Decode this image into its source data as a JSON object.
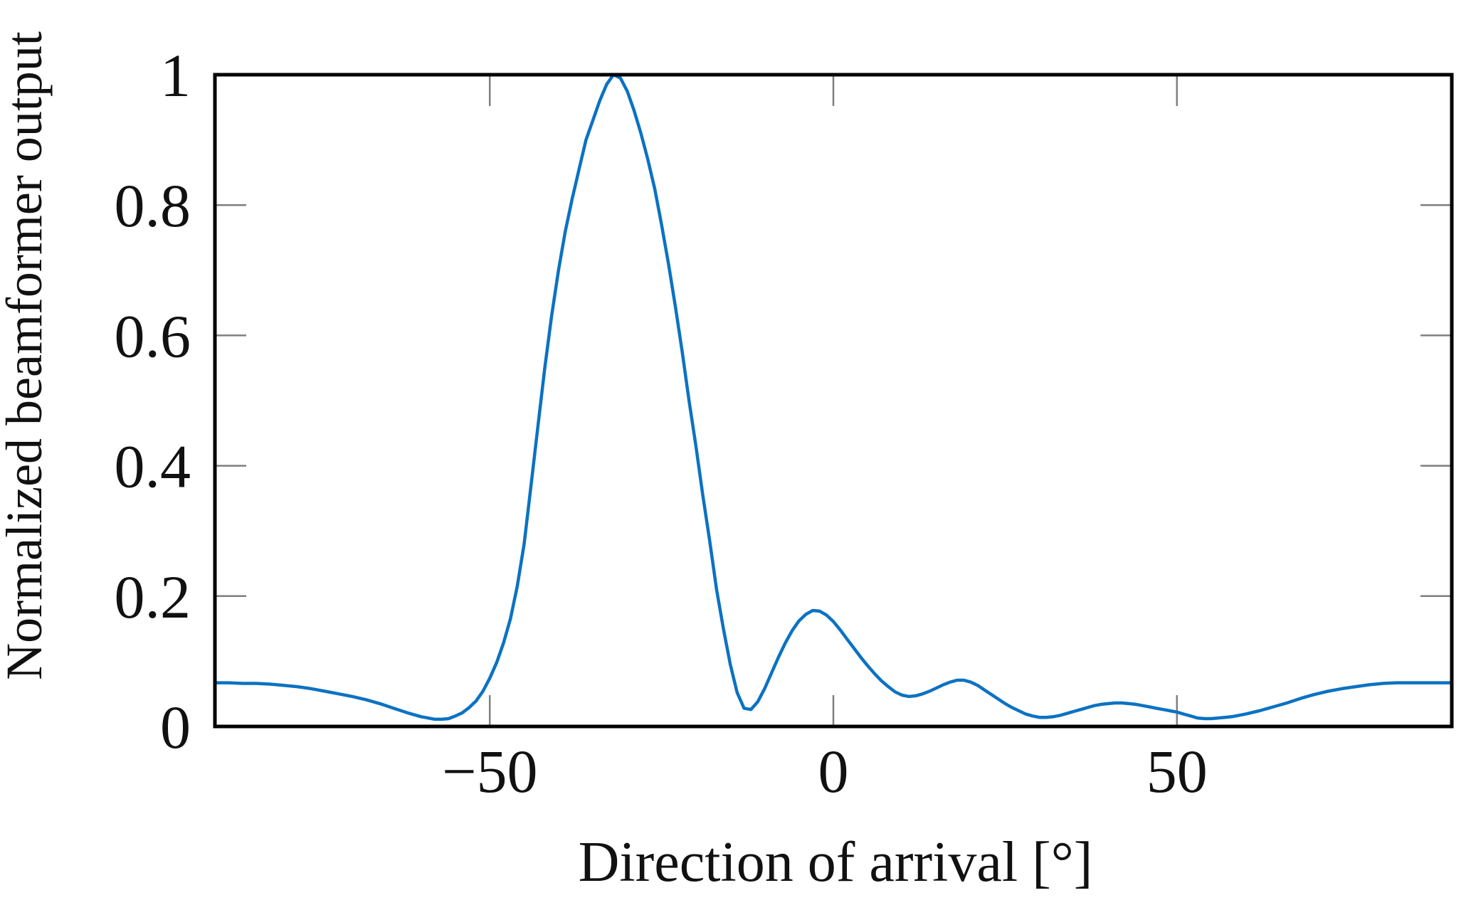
{
  "figure": {
    "background_color": "#ffffff",
    "axis_color": "#000000",
    "tick_color": "#7f7f7f"
  },
  "chart_data": {
    "type": "line",
    "title": "",
    "xlabel": "Direction of arrival [°]",
    "ylabel": "Normalized beamformer output",
    "xlim": [
      -90,
      90
    ],
    "ylim": [
      0,
      1
    ],
    "grid": false,
    "legend": "none",
    "x_ticks": {
      "values": [
        -50,
        0,
        50
      ],
      "labels": [
        "−50",
        "0",
        "50"
      ]
    },
    "y_ticks": {
      "values": [
        1,
        0.8,
        0.6,
        0.4,
        0.2,
        0
      ],
      "labels": [
        "1",
        "0.8",
        "0.6",
        "0.4",
        "0.2",
        "0"
      ]
    },
    "series": [
      {
        "name": "normalized beamformer output",
        "color": "#0b72c2",
        "line_width": 4.5,
        "x": [
          -90,
          -88,
          -86,
          -84,
          -82,
          -80,
          -78,
          -76,
          -74,
          -72,
          -70,
          -68,
          -66,
          -64,
          -62,
          -60,
          -59,
          -58,
          -57,
          -56,
          -55,
          -54,
          -53,
          -52,
          -51,
          -50,
          -49,
          -48,
          -47,
          -46,
          -45,
          -44,
          -43,
          -42,
          -41,
          -40,
          -39,
          -38,
          -37,
          -36,
          -35,
          -34,
          -33,
          -32,
          -31,
          -30,
          -29,
          -28,
          -27,
          -26,
          -25,
          -24,
          -23,
          -22,
          -21,
          -20,
          -19,
          -18,
          -17,
          -16,
          -15,
          -14,
          -13,
          -12,
          -11,
          -10,
          -9,
          -8,
          -7,
          -6,
          -5,
          -4,
          -3,
          -2,
          -1,
          0,
          1,
          2,
          3,
          4,
          5,
          6,
          7,
          8,
          9,
          10,
          11,
          12,
          13,
          14,
          15,
          16,
          17,
          18,
          19,
          20,
          21,
          22,
          23,
          24,
          25,
          26,
          27,
          28,
          29,
          30,
          31,
          32,
          33,
          34,
          35,
          36,
          37,
          38,
          39,
          40,
          41,
          42,
          43,
          44,
          45,
          46,
          47,
          48,
          49,
          50,
          51,
          52,
          53,
          54,
          55,
          56,
          57,
          58,
          59,
          60,
          62,
          64,
          66,
          68,
          70,
          72,
          74,
          76,
          78,
          80,
          82,
          84,
          86,
          88,
          90
        ],
        "y": [
          0.067,
          0.067,
          0.066,
          0.066,
          0.065,
          0.063,
          0.061,
          0.058,
          0.054,
          0.05,
          0.046,
          0.041,
          0.035,
          0.028,
          0.021,
          0.015,
          0.013,
          0.011,
          0.011,
          0.012,
          0.016,
          0.021,
          0.029,
          0.039,
          0.054,
          0.074,
          0.098,
          0.128,
          0.165,
          0.215,
          0.28,
          0.37,
          0.46,
          0.55,
          0.63,
          0.7,
          0.76,
          0.81,
          0.855,
          0.9,
          0.93,
          0.96,
          0.985,
          1.0,
          0.995,
          0.975,
          0.945,
          0.91,
          0.87,
          0.825,
          0.77,
          0.71,
          0.645,
          0.575,
          0.5,
          0.43,
          0.355,
          0.285,
          0.21,
          0.15,
          0.095,
          0.052,
          0.028,
          0.026,
          0.038,
          0.058,
          0.082,
          0.106,
          0.128,
          0.147,
          0.162,
          0.172,
          0.178,
          0.177,
          0.171,
          0.161,
          0.148,
          0.134,
          0.12,
          0.106,
          0.093,
          0.081,
          0.07,
          0.061,
          0.053,
          0.048,
          0.046,
          0.047,
          0.05,
          0.054,
          0.059,
          0.064,
          0.068,
          0.071,
          0.071,
          0.068,
          0.063,
          0.056,
          0.049,
          0.042,
          0.035,
          0.029,
          0.024,
          0.019,
          0.016,
          0.014,
          0.014,
          0.015,
          0.017,
          0.02,
          0.023,
          0.026,
          0.029,
          0.032,
          0.034,
          0.035,
          0.036,
          0.036,
          0.035,
          0.034,
          0.032,
          0.03,
          0.028,
          0.026,
          0.024,
          0.022,
          0.019,
          0.016,
          0.013,
          0.012,
          0.012,
          0.013,
          0.014,
          0.015,
          0.017,
          0.019,
          0.024,
          0.03,
          0.036,
          0.043,
          0.049,
          0.054,
          0.058,
          0.061,
          0.064,
          0.066,
          0.067,
          0.067,
          0.067,
          0.067,
          0.067
        ]
      }
    ]
  }
}
